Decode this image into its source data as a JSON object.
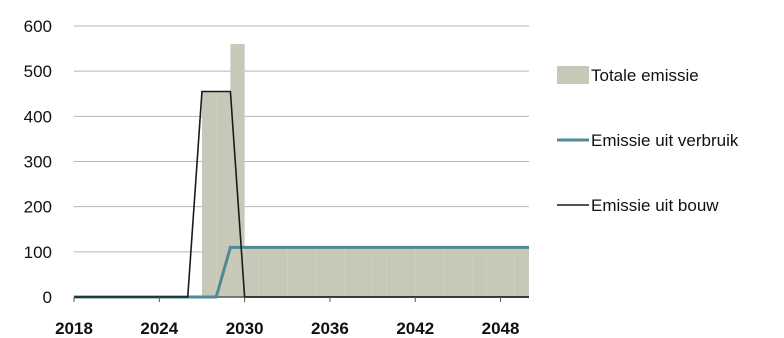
{
  "chart_data": {
    "type": "area",
    "title": "",
    "xlabel": "",
    "ylabel": "",
    "xlim": [
      2018,
      2050
    ],
    "ylim": [
      0,
      600
    ],
    "xticks": [
      2018,
      2024,
      2030,
      2036,
      2042,
      2048
    ],
    "yticks": [
      0,
      100,
      200,
      300,
      400,
      500,
      600
    ],
    "grid": "horizontal",
    "legend_position": "right",
    "series": [
      {
        "name": "Totale emissie",
        "type": "bar",
        "color": "#c8c8b8",
        "x": [
          2026,
          2027,
          2028,
          2029,
          2030,
          2031,
          2032,
          2033,
          2034,
          2035,
          2036,
          2037,
          2038,
          2039,
          2040,
          2041,
          2042,
          2043,
          2044,
          2045,
          2046,
          2047,
          2048,
          2049
        ],
        "values": [
          0,
          455,
          455,
          560,
          110,
          110,
          110,
          110,
          110,
          110,
          110,
          110,
          110,
          110,
          110,
          110,
          110,
          110,
          110,
          110,
          110,
          110,
          110,
          110
        ]
      },
      {
        "name": "Emissie uit verbruik",
        "type": "line",
        "color": "#4e8b99",
        "x": [
          2018,
          2028,
          2029,
          2050
        ],
        "values": [
          0,
          0,
          110,
          110
        ]
      },
      {
        "name": "Emissie uit bouw",
        "type": "line",
        "color": "#1a1a1a",
        "x": [
          2018,
          2026,
          2027,
          2029,
          2030,
          2050
        ],
        "values": [
          0,
          0,
          455,
          455,
          0,
          0
        ]
      }
    ]
  }
}
